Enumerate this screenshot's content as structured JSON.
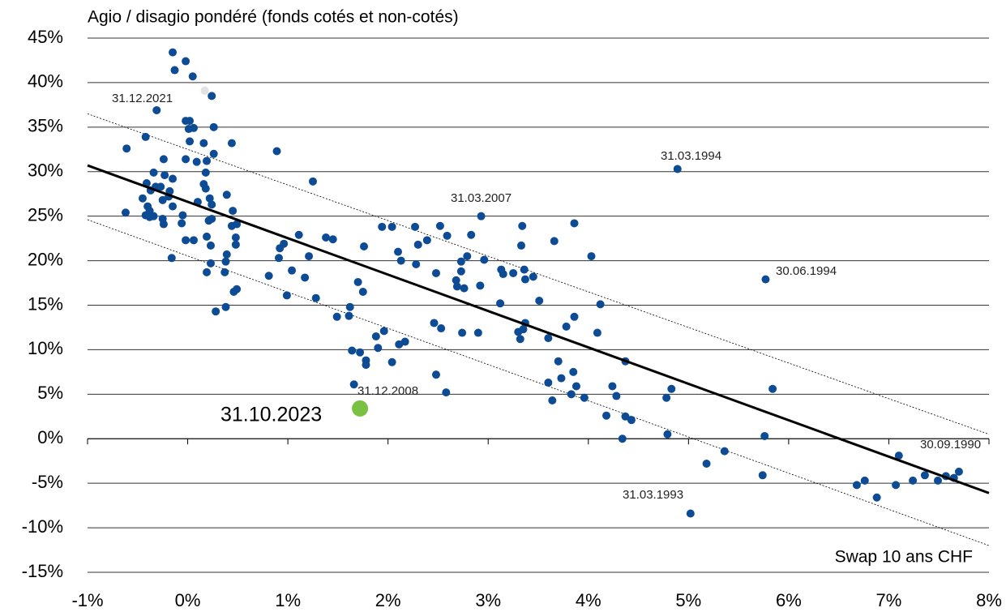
{
  "chart_data": {
    "type": "scatter",
    "title": "Agio / disagio pondéré (fonds cotés et non-cotés)",
    "x_label": "Swap 10 ans CHF",
    "xlim": [
      -1,
      8
    ],
    "ylim": [
      -15,
      45
    ],
    "xticks": [
      {
        "value": -1,
        "label": "-1%"
      },
      {
        "value": 0,
        "label": "0%"
      },
      {
        "value": 1,
        "label": "1%"
      },
      {
        "value": 2,
        "label": "2%"
      },
      {
        "value": 3,
        "label": "3%"
      },
      {
        "value": 4,
        "label": "4%"
      },
      {
        "value": 5,
        "label": "5%"
      },
      {
        "value": 6,
        "label": "6%"
      },
      {
        "value": 7,
        "label": "7%"
      },
      {
        "value": 8,
        "label": "8%"
      }
    ],
    "yticks": [
      {
        "value": -15,
        "label": "-15%"
      },
      {
        "value": -10,
        "label": "-10%"
      },
      {
        "value": -5,
        "label": "-5%"
      },
      {
        "value": 0,
        "label": "0%"
      },
      {
        "value": 5,
        "label": "5%"
      },
      {
        "value": 10,
        "label": "10%"
      },
      {
        "value": 15,
        "label": "15%"
      },
      {
        "value": 20,
        "label": "20%"
      },
      {
        "value": 25,
        "label": "25%"
      },
      {
        "value": 30,
        "label": "30%"
      },
      {
        "value": 35,
        "label": "35%"
      },
      {
        "value": 40,
        "label": "40%"
      },
      {
        "value": 45,
        "label": "45%"
      }
    ],
    "grid": true,
    "series": [
      {
        "color": "#0d4c94",
        "x": [
          -0.15,
          -0.02,
          -0.13,
          0.05,
          0.24,
          -0.31,
          -0.02,
          0.02,
          0.01,
          0.06,
          0.26,
          -0.42,
          0.02,
          0.16,
          0.44,
          -0.61,
          0.89,
          0.26,
          -0.24,
          -0.02,
          0.09,
          0.19,
          0.18,
          -0.34,
          -0.23,
          -0.15,
          1.25,
          -0.41,
          -0.32,
          -0.27,
          0.16,
          -0.37,
          -0.18,
          0.18,
          0.39,
          -0.19,
          -0.45,
          0.22,
          -0.25,
          0.1,
          0.24,
          -0.4,
          -0.15,
          -0.38,
          0.45,
          -0.62,
          -0.05,
          -0.42,
          -0.38,
          -0.34,
          0.24,
          0.21,
          -0.25,
          2.93,
          -0.24,
          -0.06,
          0.49,
          0.44,
          1.94,
          2.04,
          2.27,
          2.52,
          3.34,
          3.86,
          0.48,
          1.11,
          1.38,
          1.45,
          2.59,
          2.83,
          3.66,
          2.39,
          0.19,
          -0.02,
          0.06,
          2.3,
          3.33,
          0.96,
          0.48,
          0.23,
          1.76,
          0.92,
          2.1,
          0.39,
          4.03,
          1.21,
          0.91,
          -0.16,
          2.79,
          2.96,
          2.13,
          2.73,
          0.38,
          0.23,
          2.28,
          1.04,
          3.13,
          3.36,
          2.73,
          0.19,
          0.37,
          1.17,
          0.81,
          3.15,
          3.25,
          3.45,
          3.37,
          5.77,
          2.48,
          1.7,
          2.68,
          2.69,
          2.76,
          2.92,
          0.49,
          0.46,
          1.75,
          0.99,
          1.28,
          3.51,
          3.12,
          4.12,
          0.38,
          1.62,
          0.28,
          1.49,
          1.61,
          3.86,
          3.37,
          2.46,
          3.78,
          2.53,
          3.35,
          1.96,
          3.3,
          2.74,
          2.9,
          4.09,
          1.88,
          3.6,
          3.32,
          2.17,
          2.11,
          1.9,
          1.64,
          1.72,
          1.78,
          1.78,
          3.7,
          2.04,
          4.37,
          3.85,
          2.48,
          3.73,
          3.6,
          1.66,
          3.88,
          5.84,
          4.83,
          4.24,
          2.58,
          3.83,
          4.28,
          3.96,
          4.78,
          3.64,
          4.18,
          4.37,
          4.43,
          4.79,
          5.76,
          4.34,
          5.36,
          7.1,
          5.18,
          5.74,
          7.7,
          7.57,
          7.65,
          7.36,
          7.24,
          7.49,
          6.76,
          6.68,
          7.07,
          6.88,
          5.02,
          4.89
        ],
        "y": [
          43.4,
          42.4,
          41.4,
          40.7,
          38.5,
          36.9,
          35.7,
          35.7,
          34.8,
          34.9,
          35.0,
          33.9,
          33.4,
          33.2,
          33.2,
          32.6,
          32.3,
          32.0,
          31.4,
          31.4,
          31.1,
          31.2,
          29.9,
          29.9,
          29.6,
          29.2,
          28.9,
          28.7,
          28.3,
          28.3,
          28.6,
          27.9,
          27.8,
          28.1,
          27.4,
          27.2,
          27.0,
          27.0,
          26.8,
          26.6,
          26.3,
          26.1,
          26.1,
          25.6,
          25.6,
          25.4,
          25.1,
          25.1,
          24.9,
          25.0,
          24.7,
          24.5,
          24.7,
          25.0,
          24.1,
          24.2,
          24.1,
          23.9,
          23.8,
          23.8,
          23.8,
          23.9,
          23.9,
          24.2,
          22.6,
          22.9,
          22.6,
          22.4,
          22.8,
          22.9,
          22.2,
          22.3,
          22.7,
          22.3,
          22.3,
          21.8,
          21.7,
          21.9,
          21.8,
          21.7,
          21.6,
          21.4,
          21.0,
          20.7,
          20.5,
          20.5,
          20.3,
          20.3,
          20.5,
          20.1,
          20.0,
          19.9,
          19.9,
          19.7,
          19.6,
          18.9,
          19.0,
          19.0,
          18.8,
          18.7,
          18.7,
          18.1,
          18.3,
          18.5,
          18.6,
          18.2,
          17.9,
          17.9,
          18.6,
          17.6,
          17.8,
          17.1,
          16.9,
          17.2,
          16.8,
          16.5,
          16.5,
          16.1,
          15.8,
          15.5,
          15.2,
          15.1,
          14.8,
          14.8,
          14.3,
          13.7,
          13.8,
          13.7,
          13.0,
          13.0,
          12.6,
          12.4,
          12.3,
          12.1,
          12.0,
          11.9,
          11.9,
          11.9,
          11.5,
          11.3,
          11.2,
          10.9,
          10.6,
          10.2,
          9.9,
          9.7,
          8.8,
          8.3,
          8.7,
          8.6,
          8.7,
          7.5,
          7.2,
          6.8,
          6.3,
          6.1,
          5.9,
          5.6,
          5.6,
          5.9,
          5.2,
          5.0,
          4.8,
          4.6,
          4.6,
          4.3,
          2.6,
          2.5,
          2.1,
          0.5,
          0.3,
          0,
          -1.4,
          -1.9,
          -2.8,
          -4.1,
          -3.7,
          -4.2,
          -4.4,
          -4.1,
          -4.7,
          -4.7,
          -4.7,
          -5.2,
          -5.2,
          -6.6,
          -8.4,
          30.3
        ]
      },
      {
        "color": "#e2e2e2",
        "x": [
          0.17
        ],
        "y": [
          39.1
        ]
      },
      {
        "color": "#7ac143",
        "x": [
          1.72
        ],
        "y": [
          3.4
        ]
      }
    ],
    "trend_line": {
      "color": "#000000",
      "x": [
        -1,
        8
      ],
      "y": [
        30.7,
        -6.1
      ]
    },
    "band_upper": {
      "color": "#000000",
      "x": [
        -1,
        8
      ],
      "y": [
        36.5,
        0.5
      ]
    },
    "band_lower": {
      "color": "#000000",
      "x": [
        -1,
        8
      ],
      "y": [
        24.6,
        -12
      ]
    },
    "annotations": [
      "31.12.2021",
      "31.03.1994",
      "31.03.2007",
      "30.06.1994",
      "31.12.2008",
      "31.03.1993",
      "30.09.1990",
      "31.10.2023"
    ]
  }
}
